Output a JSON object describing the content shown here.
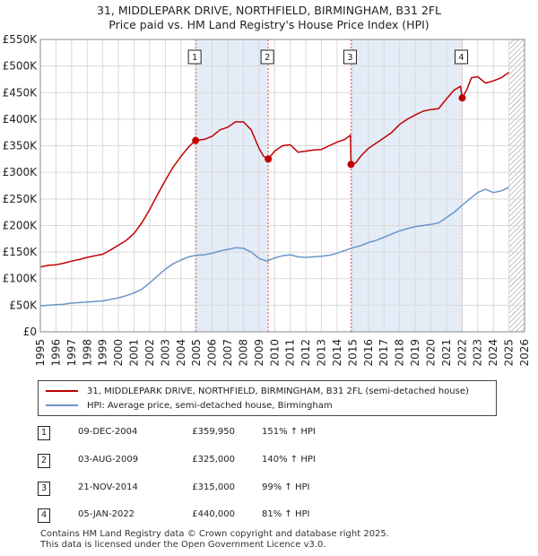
{
  "title_line1": "31, MIDDLEPARK DRIVE, NORTHFIELD, BIRMINGHAM, B31 2FL",
  "title_line2": "Price paid vs. HM Land Registry's House Price Index (HPI)",
  "colors": {
    "property": "#c00000",
    "hpi": "#6a96c8",
    "shade": "#e4ecf7",
    "grid": "#d9d9d9",
    "hatch": "#9a9a9a"
  },
  "legend": {
    "property_label": "31, MIDDLEPARK DRIVE, NORTHFIELD, BIRMINGHAM, B31 2FL (semi-detached house)",
    "hpi_label": "HPI: Average price, semi-detached house, Birmingham"
  },
  "sales": [
    {
      "num": "1",
      "date": "09-DEC-2004",
      "price": "£359,950",
      "hpi": "151% ↑ HPI"
    },
    {
      "num": "2",
      "date": "03-AUG-2009",
      "price": "£325,000",
      "hpi": "140% ↑ HPI"
    },
    {
      "num": "3",
      "date": "21-NOV-2014",
      "price": "£315,000",
      "hpi": "99% ↑ HPI"
    },
    {
      "num": "4",
      "date": "05-JAN-2022",
      "price": "£440,000",
      "hpi": "81% ↑ HPI"
    }
  ],
  "footer_line1": "Contains HM Land Registry data © Crown copyright and database right 2025.",
  "footer_line2": "This data is licensed under the Open Government Licence v3.0.",
  "chart_data": {
    "type": "line",
    "xlim": [
      1995,
      2026
    ],
    "ylim": [
      0,
      550000
    ],
    "x_ticks": [
      1995,
      1996,
      1997,
      1998,
      1999,
      2000,
      2001,
      2002,
      2003,
      2004,
      2005,
      2006,
      2007,
      2008,
      2009,
      2010,
      2011,
      2012,
      2013,
      2014,
      2015,
      2016,
      2017,
      2018,
      2019,
      2020,
      2021,
      2022,
      2023,
      2024,
      2025,
      2026
    ],
    "y_ticks": [
      0,
      50000,
      100000,
      150000,
      200000,
      250000,
      300000,
      350000,
      400000,
      450000,
      500000,
      550000
    ],
    "y_tick_labels": [
      "£0",
      "£50K",
      "£100K",
      "£150K",
      "£200K",
      "£250K",
      "£300K",
      "£350K",
      "£400K",
      "£450K",
      "£500K",
      "£550K"
    ],
    "grid": true,
    "shaded_ranges": [
      [
        2004.94,
        2009.59
      ],
      [
        2014.89,
        2022.01
      ]
    ],
    "hatched_from": 2025.0,
    "markers": [
      {
        "label": "1",
        "x": 2004.94,
        "y": 359950
      },
      {
        "label": "2",
        "x": 2009.59,
        "y": 325000
      },
      {
        "label": "3",
        "x": 2014.89,
        "y": 315000
      },
      {
        "label": "4",
        "x": 2022.01,
        "y": 440000
      }
    ],
    "series": [
      {
        "name": "31, MIDDLEPARK DRIVE, NORTHFIELD, BIRMINGHAM, B31 2FL (semi-detached house)",
        "color": "#c00000",
        "x": [
          1995.0,
          1995.5,
          1996.0,
          1996.5,
          1997.0,
          1997.5,
          1998.0,
          1998.5,
          1999.0,
          1999.5,
          2000.0,
          2000.5,
          2001.0,
          2001.5,
          2002.0,
          2002.5,
          2003.0,
          2003.5,
          2004.0,
          2004.5,
          2004.94,
          2005.5,
          2006.0,
          2006.5,
          2007.0,
          2007.5,
          2008.0,
          2008.5,
          2009.0,
          2009.3,
          2009.59,
          2010.0,
          2010.5,
          2011.0,
          2011.5,
          2012.0,
          2012.5,
          2013.0,
          2013.5,
          2014.0,
          2014.5,
          2014.85,
          2014.89,
          2015.2,
          2015.5,
          2016.0,
          2016.5,
          2017.0,
          2017.5,
          2018.0,
          2018.5,
          2019.0,
          2019.5,
          2020.0,
          2020.5,
          2021.0,
          2021.5,
          2021.9,
          2022.01,
          2022.3,
          2022.6,
          2023.0,
          2023.5,
          2024.0,
          2024.5,
          2025.0
        ],
        "y": [
          122000,
          125000,
          126000,
          129000,
          133000,
          136000,
          140000,
          143000,
          146000,
          154000,
          163000,
          172000,
          185000,
          205000,
          230000,
          258000,
          285000,
          310000,
          330000,
          348000,
          359950,
          362000,
          368000,
          380000,
          385000,
          395000,
          395000,
          380000,
          345000,
          330000,
          325000,
          340000,
          350000,
          352000,
          338000,
          340000,
          342000,
          343000,
          350000,
          357000,
          362000,
          370000,
          315000,
          318000,
          330000,
          345000,
          355000,
          365000,
          375000,
          390000,
          400000,
          408000,
          415000,
          418000,
          420000,
          438000,
          455000,
          462000,
          440000,
          455000,
          478000,
          480000,
          468000,
          472000,
          478000,
          488000
        ]
      },
      {
        "name": "HPI: Average price, semi-detached house, Birmingham",
        "color": "#6a96c8",
        "x": [
          1995.0,
          1995.5,
          1996.0,
          1996.5,
          1997.0,
          1997.5,
          1998.0,
          1998.5,
          1999.0,
          1999.5,
          2000.0,
          2000.5,
          2001.0,
          2001.5,
          2002.0,
          2002.5,
          2003.0,
          2003.5,
          2004.0,
          2004.5,
          2005.0,
          2005.5,
          2006.0,
          2006.5,
          2007.0,
          2007.5,
          2008.0,
          2008.5,
          2009.0,
          2009.5,
          2010.0,
          2010.5,
          2011.0,
          2011.5,
          2012.0,
          2012.5,
          2013.0,
          2013.5,
          2014.0,
          2014.5,
          2015.0,
          2015.5,
          2016.0,
          2016.5,
          2017.0,
          2017.5,
          2018.0,
          2018.5,
          2019.0,
          2019.5,
          2020.0,
          2020.5,
          2021.0,
          2021.5,
          2022.0,
          2022.5,
          2023.0,
          2023.5,
          2024.0,
          2024.5,
          2025.0
        ],
        "y": [
          49000,
          50000,
          51000,
          52000,
          54000,
          55000,
          56000,
          57000,
          58000,
          61000,
          64000,
          68000,
          73000,
          80000,
          92000,
          105000,
          118000,
          128000,
          135000,
          141000,
          144000,
          145000,
          148000,
          152000,
          155000,
          158000,
          157000,
          150000,
          138000,
          133000,
          139000,
          143000,
          145000,
          141000,
          140000,
          141000,
          142000,
          144000,
          148000,
          153000,
          158000,
          162000,
          168000,
          172000,
          178000,
          184000,
          190000,
          194000,
          198000,
          200000,
          202000,
          205000,
          215000,
          225000,
          238000,
          250000,
          262000,
          268000,
          262000,
          265000,
          272000
        ]
      }
    ]
  }
}
